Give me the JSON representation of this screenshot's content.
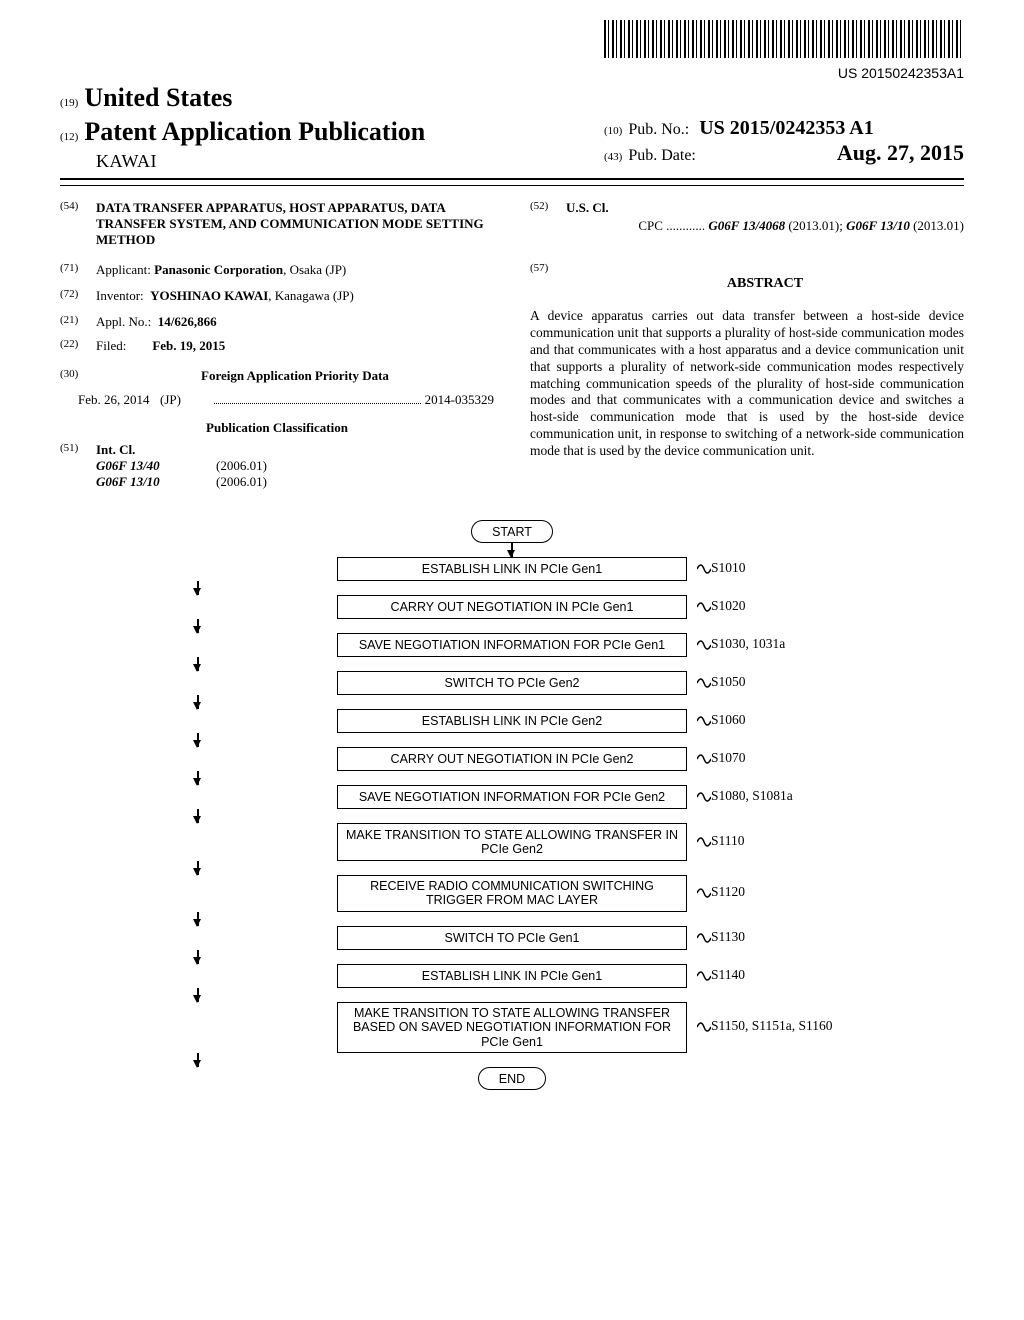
{
  "barcode_text": "US 20150242353A1",
  "country_prefix": "(19)",
  "country": "United States",
  "pub_type_prefix": "(12)",
  "pub_type": "Patent Application Publication",
  "inventor_header": "KAWAI",
  "pub_no_prefix": "(10)",
  "pub_no_label": "Pub. No.:",
  "pub_no": "US 2015/0242353 A1",
  "pub_date_prefix": "(43)",
  "pub_date_label": "Pub. Date:",
  "pub_date": "Aug. 27, 2015",
  "title_num": "(54)",
  "title": "DATA TRANSFER APPARATUS, HOST APPARATUS, DATA TRANSFER SYSTEM, AND COMMUNICATION MODE SETTING METHOD",
  "applicant_num": "(71)",
  "applicant_label": "Applicant:",
  "applicant": "Panasonic Corporation",
  "applicant_loc": ", Osaka (JP)",
  "inventor_num": "(72)",
  "inventor_label": "Inventor:",
  "inventor": "YOSHINAO KAWAI",
  "inventor_loc": ", Kanagawa (JP)",
  "appl_no_num": "(21)",
  "appl_no_label": "Appl. No.:",
  "appl_no": "14/626,866",
  "filed_num": "(22)",
  "filed_label": "Filed:",
  "filed": "Feb. 19, 2015",
  "foreign_priority_num": "(30)",
  "foreign_priority_heading": "Foreign Application Priority Data",
  "priority_date": "Feb. 26, 2014",
  "priority_country": "(JP)",
  "priority_number": "2014-035329",
  "pub_class_heading": "Publication Classification",
  "intcl_num": "(51)",
  "intcl_label": "Int. Cl.",
  "intcl_rows": [
    {
      "code": "G06F 13/40",
      "year": "(2006.01)"
    },
    {
      "code": "G06F 13/10",
      "year": "(2006.01)"
    }
  ],
  "uscl_num": "(52)",
  "uscl_label": "U.S. Cl.",
  "cpc_label": "CPC",
  "cpc_codes": [
    {
      "code": "G06F 13/4068",
      "year": "(2013.01)"
    },
    {
      "code": "G06F 13/10",
      "year": "(2013.01)"
    }
  ],
  "abstract_num": "(57)",
  "abstract_heading": "ABSTRACT",
  "abstract_text": "A device apparatus carries out data transfer between a host-side device communication unit that supports a plurality of host-side communication modes and that communicates with a host apparatus and a device communication unit that supports a plurality of network-side communication modes respectively matching communication speeds of the plurality of host-side communication modes and that communicates with a communication device and switches a host-side communication mode that is used by the host-side device communication unit, in response to switching of a network-side communication mode that is used by the device communication unit.",
  "flowchart": {
    "start": "START",
    "end": "END",
    "steps": [
      {
        "text": "ESTABLISH LINK IN PCIe Gen1",
        "label": "S1010"
      },
      {
        "text": "CARRY OUT NEGOTIATION IN PCIe Gen1",
        "label": "S1020"
      },
      {
        "text": "SAVE NEGOTIATION INFORMATION FOR PCIe Gen1",
        "label": "S1030, 1031a"
      },
      {
        "text": "SWITCH TO PCIe Gen2",
        "label": "S1050"
      },
      {
        "text": "ESTABLISH LINK IN PCIe Gen2",
        "label": "S1060"
      },
      {
        "text": "CARRY OUT NEGOTIATION IN PCIe Gen2",
        "label": "S1070"
      },
      {
        "text": "SAVE NEGOTIATION INFORMATION FOR PCIe Gen2",
        "label": "S1080, S1081a"
      },
      {
        "text": "MAKE TRANSITION TO STATE ALLOWING TRANSFER IN PCIe Gen2",
        "label": "S1110"
      },
      {
        "text": "RECEIVE RADIO COMMUNICATION SWITCHING TRIGGER FROM MAC LAYER",
        "label": "S1120",
        "tall": true
      },
      {
        "text": "SWITCH TO PCIe Gen1",
        "label": "S1130"
      },
      {
        "text": "ESTABLISH LINK IN PCIe Gen1",
        "label": "S1140"
      },
      {
        "text": "MAKE TRANSITION TO STATE ALLOWING TRANSFER BASED ON SAVED NEGOTIATION INFORMATION FOR PCIe Gen1",
        "label": "S1150, S1151a, S1160",
        "tall": true
      }
    ]
  }
}
